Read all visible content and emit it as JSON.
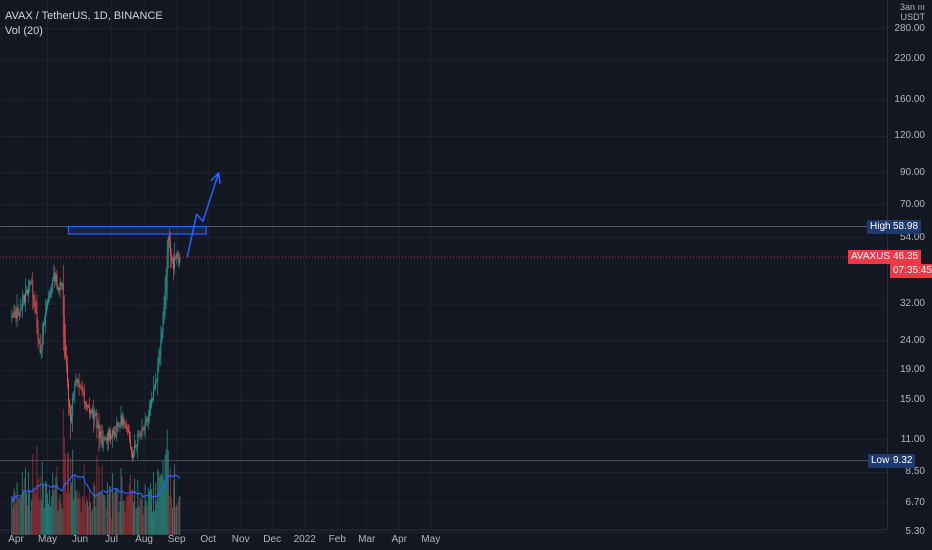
{
  "legend": {
    "symbol_line": "AVAX / TetherUS, 1D, BINANCE",
    "volume_line": "Vol (20)"
  },
  "price_scale": {
    "currency": [
      "3an ııı",
      "USDT"
    ],
    "ticks": [
      "280.00",
      "220.00",
      "160.00",
      "120.00",
      "90.00",
      "70.00",
      "54.00",
      "32.00",
      "24.00",
      "19.00",
      "15.00",
      "11.00",
      "8.50",
      "6.70",
      "5.30"
    ]
  },
  "time_scale": {
    "ticks": [
      "Apr",
      "May",
      "Jun",
      "Jul",
      "Aug",
      "Sep",
      "Oct",
      "Nov",
      "Dec",
      "2022",
      "Feb",
      "Mar",
      "Apr",
      "May"
    ]
  },
  "tags": {
    "high_label": "High",
    "high_value": "58.98",
    "low_label": "Low",
    "low_value": "9.32",
    "symbol_label": "AVAXUSDT",
    "last_price": "46.35",
    "countdown": "07:35:45"
  },
  "colors": {
    "background": "#131722",
    "up": "#26a69a",
    "down": "#ef5350",
    "volume_up": "#2a7f74",
    "volume_down": "#8c2f33",
    "volume_ma": "#2962ff",
    "drawing": "#2962ff",
    "high_low_tag": "#1e3a6e",
    "last_price_tag": "#f23645"
  },
  "chart_data": {
    "type": "candlestick",
    "symbol": "AVAX / TetherUS",
    "interval": "1D",
    "exchange": "BINANCE",
    "y_scale": "log",
    "ylim": [
      4.8,
      330
    ],
    "x": {
      "start": "2021-03-28",
      "end": "2022-05-13"
    },
    "keypoints": [
      [
        "2021-03-28",
        28.5
      ],
      [
        "2021-04-04",
        30.5
      ],
      [
        "2021-04-11",
        35
      ],
      [
        "2021-04-14",
        39
      ],
      [
        "2021-04-19",
        33
      ],
      [
        "2021-04-24",
        21
      ],
      [
        "2021-04-29",
        30
      ],
      [
        "2021-05-04",
        36
      ],
      [
        "2021-05-08",
        40
      ],
      [
        "2021-05-12",
        36
      ],
      [
        "2021-05-15",
        37
      ],
      [
        "2021-05-17",
        25
      ],
      [
        "2021-05-20",
        17
      ],
      [
        "2021-05-23",
        13
      ],
      [
        "2021-05-27",
        17
      ],
      [
        "2021-06-02",
        17
      ],
      [
        "2021-06-06",
        14
      ],
      [
        "2021-06-10",
        14
      ],
      [
        "2021-06-16",
        13
      ],
      [
        "2021-06-22",
        10.5
      ],
      [
        "2021-06-28",
        11.5
      ],
      [
        "2021-07-05",
        11.8
      ],
      [
        "2021-07-11",
        13
      ],
      [
        "2021-07-16",
        11.5
      ],
      [
        "2021-07-21",
        10
      ],
      [
        "2021-07-27",
        11.5
      ],
      [
        "2021-08-02",
        12.5
      ],
      [
        "2021-08-08",
        15
      ],
      [
        "2021-08-14",
        19
      ],
      [
        "2021-08-17",
        25
      ],
      [
        "2021-08-20",
        32
      ],
      [
        "2021-08-22",
        42
      ],
      [
        "2021-08-24",
        55
      ],
      [
        "2021-08-25",
        51
      ],
      [
        "2021-08-27",
        47
      ],
      [
        "2021-08-29",
        43
      ],
      [
        "2021-08-31",
        47
      ],
      [
        "2021-09-02",
        45
      ],
      [
        "2021-09-04",
        46.35
      ]
    ],
    "volume_scale": {
      "top_price": 14,
      "bottom_price": 5.2
    },
    "volume_ma_period": 20,
    "high": 58.98,
    "low": 9.32,
    "last": 46.35,
    "drawings": {
      "resistance_zone": {
        "start": "2021-05-21",
        "end": "2021-09-29",
        "top": 58.98,
        "bottom": 55.6
      },
      "projection_arrow": [
        [
          "2021-09-11",
          46.35
        ],
        [
          "2021-09-20",
          65
        ],
        [
          "2021-09-26",
          61.5
        ],
        [
          "2021-10-11",
          90
        ]
      ]
    }
  }
}
